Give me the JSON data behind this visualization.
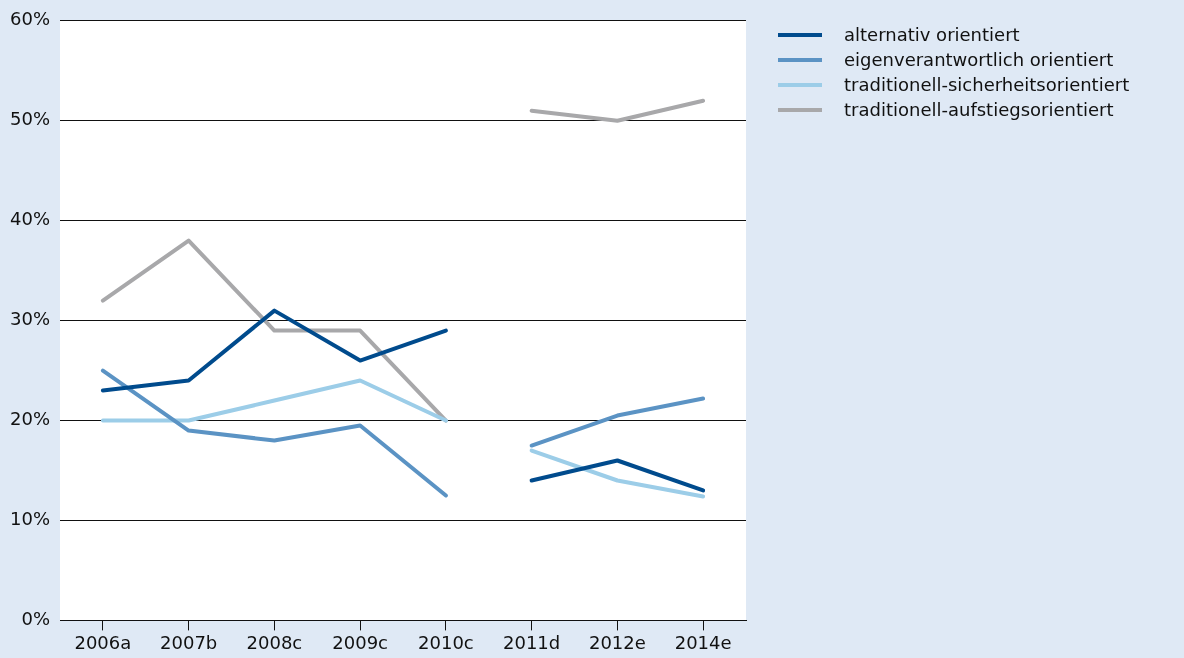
{
  "chart_data": {
    "type": "line",
    "categories": [
      "2006a",
      "2007b",
      "2008c",
      "2009c",
      "2010c",
      "2011d",
      "2012e",
      "2014e"
    ],
    "series": [
      {
        "name": "alternativ orientiert",
        "color": "#004b8d",
        "values": [
          23,
          24,
          31,
          26,
          29,
          null,
          null,
          null
        ]
      },
      {
        "name": "eigenverantwortlich orientiert",
        "color": "#5b93c4",
        "values": [
          25,
          19,
          18,
          19.5,
          12.5,
          null,
          null,
          null
        ]
      },
      {
        "name": "traditionell-sicherheitsorientiert",
        "color": "#9ccde8",
        "values": [
          20,
          20,
          22,
          24,
          20,
          null,
          null,
          null
        ]
      },
      {
        "name": "traditionell-aufstiegsorientiert",
        "color": "#a8a8aa",
        "values": [
          32,
          38,
          29,
          29,
          20,
          null,
          null,
          null
        ]
      },
      {
        "color": "#004b8d",
        "values": [
          null,
          null,
          null,
          null,
          null,
          14,
          16,
          13
        ]
      },
      {
        "color": "#5b93c4",
        "values": [
          null,
          null,
          null,
          null,
          null,
          17.5,
          20.5,
          22.2
        ]
      },
      {
        "color": "#9ccde8",
        "values": [
          null,
          null,
          null,
          null,
          null,
          17,
          14,
          12.4
        ]
      },
      {
        "color": "#a8a8aa",
        "values": [
          null,
          null,
          null,
          null,
          null,
          51,
          50,
          52
        ]
      }
    ],
    "ylim": [
      0,
      60
    ],
    "yticks": [
      {
        "value": 0,
        "label": "0%"
      },
      {
        "value": 10,
        "label": "10%"
      },
      {
        "value": 20,
        "label": "20%"
      },
      {
        "value": 30,
        "label": "30%"
      },
      {
        "value": 40,
        "label": "40%"
      },
      {
        "value": 50,
        "label": "50%"
      },
      {
        "value": 60,
        "label": "60%"
      }
    ],
    "grid": "y",
    "legend": "right",
    "marker": "none",
    "line_style": "solid"
  }
}
